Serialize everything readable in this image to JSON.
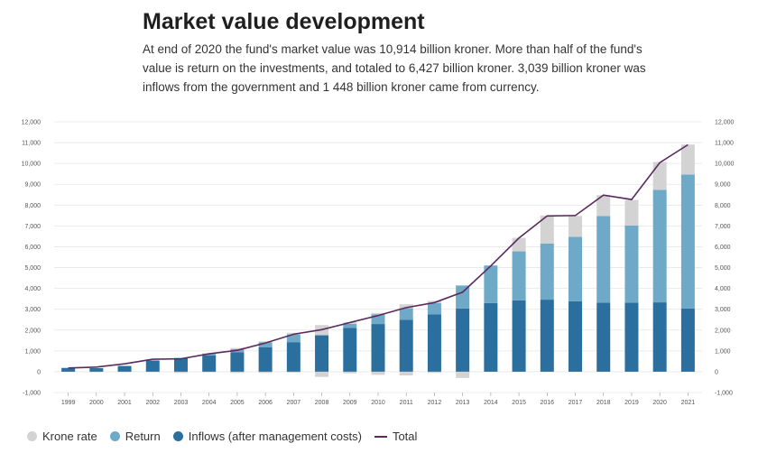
{
  "header": {
    "title": "Market value development",
    "subtitle": "At end of 2020 the fund's market value was 10,914 billion kroner. More than half of the fund's value is return on the investments, and totaled to 6,427 billion kroner. 3,039 billion kroner was inflows from the government and 1 448 billion kroner came from currency."
  },
  "colors": {
    "krone": "#d3d3d3",
    "return": "#6fa9c8",
    "inflows": "#2b6f9e",
    "total": "#5a2a5e",
    "grid": "#e6e6e6"
  },
  "legend": [
    {
      "label": "Krone rate",
      "key": "krone",
      "kind": "dot"
    },
    {
      "label": "Return",
      "key": "return",
      "kind": "dot"
    },
    {
      "label": "Inflows (after management costs)",
      "key": "inflows",
      "kind": "dot"
    },
    {
      "label": "Total",
      "key": "total",
      "kind": "line"
    }
  ],
  "chart_data": {
    "type": "bar",
    "stacked": true,
    "categories": [
      "1999",
      "2000",
      "2001",
      "2002",
      "2003",
      "2004",
      "2005",
      "2006",
      "2007",
      "2008",
      "2009",
      "2010",
      "2011",
      "2012",
      "2013",
      "2014",
      "2015",
      "2016",
      "2017",
      "2018",
      "2019",
      "2020",
      "2021"
    ],
    "ylim": [
      -1000,
      12000
    ],
    "yticks": [
      -1000,
      0,
      1000,
      2000,
      3000,
      4000,
      5000,
      6000,
      7000,
      8000,
      9000,
      10000,
      11000,
      12000
    ],
    "ytick_labels": [
      "-1,000",
      "0",
      "1,000",
      "2,000",
      "3,000",
      "4,000",
      "5,000",
      "6,000",
      "7,000",
      "8,000",
      "9,000",
      "10,000",
      "11,000",
      "12,000"
    ],
    "grid": true,
    "series": [
      {
        "name": "Inflows (after management costs)",
        "key": "inflows",
        "values": [
          170,
          170,
          270,
          540,
          650,
          780,
          940,
          1180,
          1420,
          1750,
          2100,
          2290,
          2500,
          2750,
          3040,
          3300,
          3430,
          3460,
          3380,
          3310,
          3320,
          3330,
          3040
        ]
      },
      {
        "name": "Return",
        "key": "return",
        "values": [
          0,
          0,
          20,
          0,
          20,
          80,
          140,
          230,
          370,
          0,
          200,
          470,
          550,
          550,
          1100,
          1800,
          2350,
          2690,
          3100,
          4170,
          3700,
          5400,
          6430
        ]
      },
      {
        "name": "Krone rate",
        "key": "krone",
        "values": [
          40,
          0,
          0,
          0,
          0,
          30,
          60,
          50,
          80,
          490,
          80,
          60,
          190,
          100,
          0,
          0,
          650,
          1350,
          1000,
          1000,
          1230,
          1340,
          1440
        ]
      },
      {
        "name": "Krone rate negative",
        "key": "krone",
        "values": [
          0,
          -20,
          -20,
          -20,
          -60,
          -30,
          -60,
          -60,
          -40,
          -250,
          -80,
          -150,
          -180,
          -60,
          -300,
          0,
          0,
          0,
          0,
          0,
          0,
          0,
          0
        ]
      }
    ],
    "total": {
      "name": "Total",
      "key": "total",
      "values": [
        180,
        220,
        380,
        600,
        620,
        860,
        1030,
        1380,
        1800,
        2020,
        2360,
        2700,
        3080,
        3320,
        3820,
        5080,
        6420,
        7480,
        7500,
        8480,
        8270,
        10040,
        10900
      ]
    }
  }
}
